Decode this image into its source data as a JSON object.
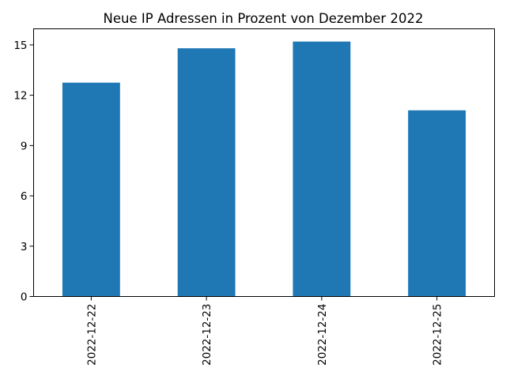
{
  "chart_data": {
    "type": "bar",
    "title": "Neue IP Adressen in Prozent von Dezember 2022",
    "xlabel": "",
    "ylabel": "",
    "categories": [
      "2022-12-22",
      "2022-12-23",
      "2022-12-24",
      "2022-12-25"
    ],
    "values": [
      12.75,
      14.8,
      15.2,
      11.1
    ],
    "ylim": [
      0,
      15.96
    ],
    "yticks": [
      0,
      3,
      6,
      9,
      12,
      15
    ],
    "grid": false,
    "legend": "none",
    "bar_color": "#1f77b4"
  }
}
